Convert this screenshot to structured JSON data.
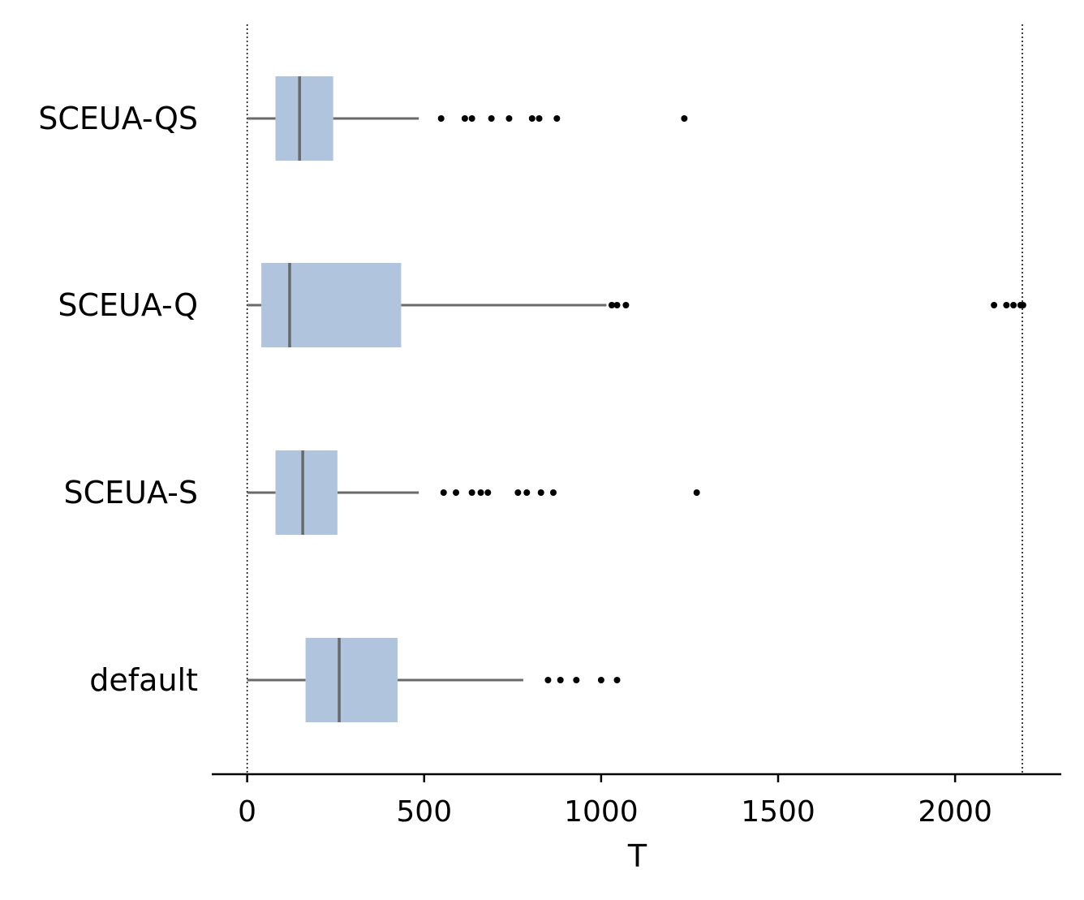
{
  "chart_data": {
    "type": "boxplot",
    "orientation": "horizontal",
    "xlabel": "T",
    "xlim": [
      -100,
      2300
    ],
    "xticks": [
      0,
      500,
      1000,
      1500,
      2000
    ],
    "xtick_labels": [
      "0",
      "500",
      "1000",
      "1500",
      "2000"
    ],
    "reference_lines": [
      0,
      2190
    ],
    "grid": false,
    "colors": {
      "box": "#b0c4de",
      "whisker": "#696969",
      "outlier": "#000000",
      "axis": "#000000"
    },
    "categories": [
      "SCEUA-QS",
      "SCEUA-Q",
      "SCEUA-S",
      "default"
    ],
    "boxes": [
      {
        "category": "SCEUA-QS",
        "whislo": 0,
        "q1": 80,
        "med": 148,
        "q3": 243,
        "whishi": 485,
        "fliers": [
          548,
          615,
          635,
          690,
          740,
          805,
          825,
          875,
          1235
        ]
      },
      {
        "category": "SCEUA-Q",
        "whislo": 0,
        "q1": 40,
        "med": 120,
        "q3": 435,
        "whishi": 1015,
        "fliers": [
          1030,
          1045,
          1070,
          2110,
          2145,
          2165,
          2185,
          2192
        ]
      },
      {
        "category": "SCEUA-S",
        "whislo": 0,
        "q1": 80,
        "med": 157,
        "q3": 255,
        "whishi": 485,
        "fliers": [
          555,
          590,
          635,
          660,
          680,
          765,
          790,
          830,
          865,
          1270
        ]
      },
      {
        "category": "default",
        "whislo": 0,
        "q1": 165,
        "med": 260,
        "q3": 425,
        "whishi": 780,
        "fliers": [
          850,
          885,
          930,
          1000,
          1045
        ]
      }
    ]
  }
}
